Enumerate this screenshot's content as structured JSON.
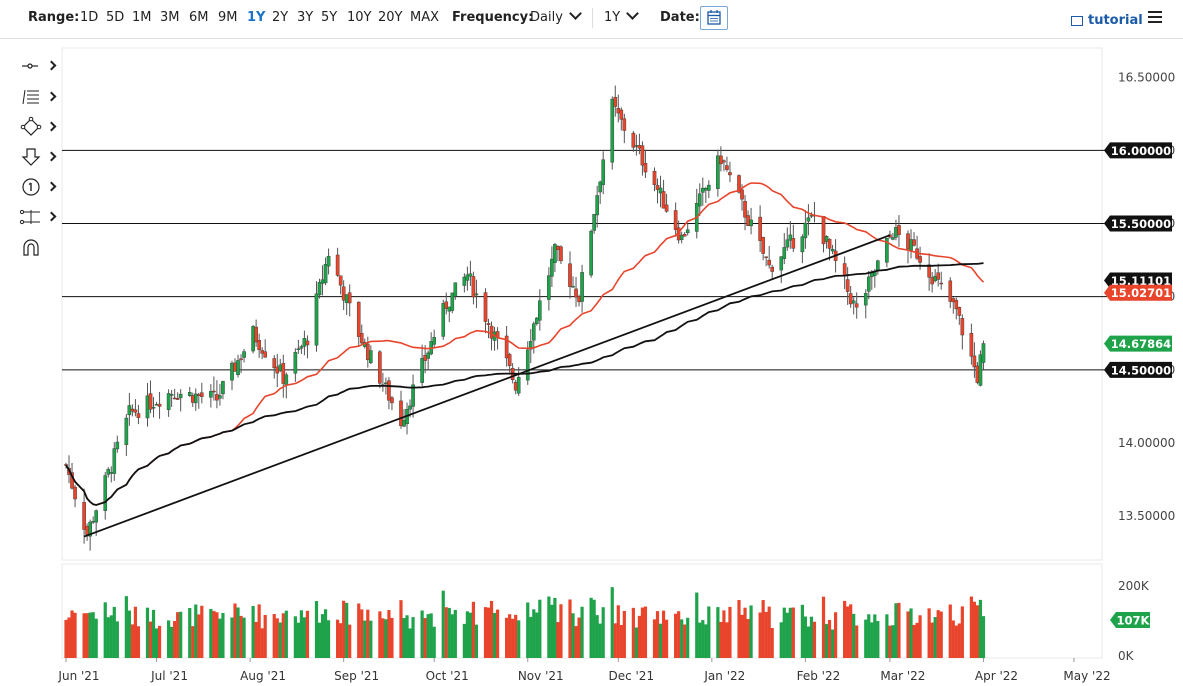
{
  "toolbar": {
    "range_label": "Range:",
    "ranges": [
      "1D",
      "5D",
      "1M",
      "3M",
      "6M",
      "9M",
      "1Y",
      "2Y",
      "3Y",
      "5Y",
      "10Y",
      "20Y",
      "MAX"
    ],
    "active_range": "1Y",
    "frequency_label": "Frequency:",
    "frequency_value": "Daily",
    "period_value": "1Y",
    "date_label": "Date:",
    "tutorial_label": "tutorial"
  },
  "tools": {
    "icons": [
      "crosshair-line-icon",
      "fibonacci-icon",
      "shapes-icon",
      "arrow-down-icon",
      "number-marker-icon",
      "measure-icon",
      "magnet-icon"
    ]
  },
  "chart_data": {
    "type": "candlestick",
    "x_axis_labels": [
      "Jun '21",
      "Jul '21",
      "Aug '21",
      "Sep '21",
      "Oct '21",
      "Nov '21",
      "Dec '21",
      "Jan '22",
      "Feb '22",
      "Mar '22",
      "Apr '22",
      "May '22"
    ],
    "price_axis_labels": [
      "16.50000",
      "16.00000",
      "15.50000",
      "15.00000",
      "14.50000",
      "14.00000",
      "13.50000"
    ],
    "ylim": [
      13.2,
      16.7
    ],
    "horizontal_levels": [
      16.0,
      15.5,
      15.0,
      14.5
    ],
    "level_tags": [
      {
        "label": "16.00000",
        "value": 16.0,
        "color": "#111111"
      },
      {
        "label": "15.50000",
        "value": 15.5,
        "color": "#111111"
      },
      {
        "label": "15.11101",
        "value": 15.111,
        "color": "#111111"
      },
      {
        "label": "15.02701",
        "value": 15.027,
        "color": "#e8452c"
      },
      {
        "label": "14.67864",
        "value": 14.679,
        "color": "#1ea34a"
      },
      {
        "label": "14.50000",
        "value": 14.5,
        "color": "#111111"
      }
    ],
    "trendline": {
      "from": {
        "date": "2021-06-07",
        "value": 13.36
      },
      "to": {
        "date": "2022-03-01",
        "value": 15.42
      }
    },
    "close_anchors": [
      {
        "date": "2021-06-01",
        "close": 13.85
      },
      {
        "date": "2021-06-08",
        "close": 13.38
      },
      {
        "date": "2021-06-22",
        "close": 14.2
      },
      {
        "date": "2021-07-06",
        "close": 14.35
      },
      {
        "date": "2021-07-21",
        "close": 14.3
      },
      {
        "date": "2021-08-02",
        "close": 14.75
      },
      {
        "date": "2021-08-12",
        "close": 14.45
      },
      {
        "date": "2021-08-20",
        "close": 14.72
      },
      {
        "date": "2021-08-27",
        "close": 15.3
      },
      {
        "date": "2021-09-06",
        "close": 14.75
      },
      {
        "date": "2021-09-20",
        "close": 14.15
      },
      {
        "date": "2021-10-05",
        "close": 14.95
      },
      {
        "date": "2021-10-12",
        "close": 15.15
      },
      {
        "date": "2021-10-28",
        "close": 14.4
      },
      {
        "date": "2021-11-10",
        "close": 15.3
      },
      {
        "date": "2021-11-18",
        "close": 15.0
      },
      {
        "date": "2021-11-29",
        "close": 16.3
      },
      {
        "date": "2021-12-10",
        "close": 15.9
      },
      {
        "date": "2021-12-22",
        "close": 15.4
      },
      {
        "date": "2022-01-04",
        "close": 15.95
      },
      {
        "date": "2022-01-20",
        "close": 15.2
      },
      {
        "date": "2022-02-04",
        "close": 15.55
      },
      {
        "date": "2022-02-18",
        "close": 14.9
      },
      {
        "date": "2022-03-02",
        "close": 15.45
      },
      {
        "date": "2022-03-10",
        "close": 15.3
      },
      {
        "date": "2022-03-23",
        "close": 14.9
      },
      {
        "date": "2022-03-30",
        "close": 14.45
      },
      {
        "date": "2022-04-01",
        "close": 14.68
      }
    ],
    "volume_axis_labels": [
      "200K",
      "107K",
      "0K"
    ],
    "volume_ylim": [
      0,
      230000
    ],
    "volume_last_label": "107K",
    "colors": {
      "up": "#1ea34a",
      "down": "#e8452c",
      "ma_fast": "#e8452c",
      "ma_slow": "#111111",
      "grid": "#e6e6e6"
    }
  }
}
